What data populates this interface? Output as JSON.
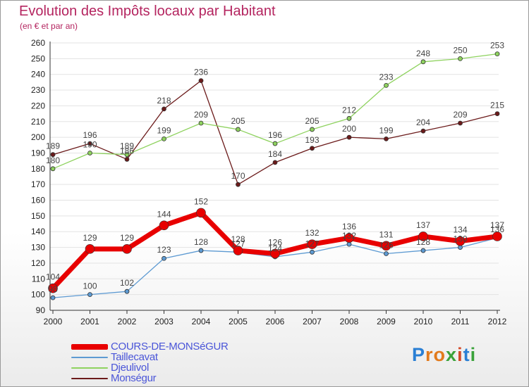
{
  "title": "Evolution des Impôts locaux par Habitant",
  "subtitle": "(en € et par an)",
  "logo": {
    "text": "Proxiti",
    "letters": [
      "P",
      "r",
      "o",
      "x",
      "i",
      "t",
      "i"
    ],
    "colors": [
      "#2a7fd4",
      "#e27a1c",
      "#e27a1c",
      "#3aa23a",
      "#d44a2a",
      "#2a7fd4",
      "#3aa23a"
    ]
  },
  "chart_data": {
    "type": "line",
    "title": "Evolution des Impôts locaux par Habitant",
    "subtitle": "(en € et par an)",
    "xlabel": "",
    "ylabel": "",
    "ylim": [
      90,
      260
    ],
    "y_ticks": [
      90,
      100,
      110,
      120,
      130,
      140,
      150,
      160,
      170,
      180,
      190,
      200,
      210,
      220,
      230,
      240,
      250,
      260
    ],
    "grid": "horizontal",
    "legend_position": "bottom-left",
    "x": [
      "2000",
      "2001",
      "2002",
      "2003",
      "2004",
      "2005",
      "2006",
      "2007",
      "2008",
      "2009",
      "2010",
      "2011",
      "2012"
    ],
    "series": [
      {
        "name": "Monségur",
        "color": "#6b1a1a",
        "line_width": 1.3,
        "marker_r": 3,
        "label_offset": -8,
        "values": [
          189,
          196,
          186,
          218,
          236,
          170,
          184,
          193,
          200,
          199,
          204,
          209,
          215
        ],
        "labels": [
          "189",
          "196",
          "186",
          "218",
          "236",
          "170",
          "184",
          "193",
          "200",
          "199",
          "204",
          "209",
          "215"
        ]
      },
      {
        "name": "Djeulivol",
        "color": "#8ed25e",
        "line_width": 1.3,
        "marker_r": 3,
        "label_offset": -8,
        "values": [
          180,
          190,
          189,
          199,
          209,
          205,
          196,
          205,
          212,
          233,
          248,
          250,
          253
        ],
        "labels": [
          "180",
          "190",
          "189",
          "199",
          "209",
          "205",
          "196",
          "205",
          "212",
          "233",
          "248",
          "250",
          "253"
        ]
      },
      {
        "name": "Taillecavat",
        "color": "#5d9ad2",
        "line_width": 1.3,
        "marker_r": 3,
        "label_offset": -8,
        "values": [
          98,
          100,
          102,
          123,
          128,
          127,
          124,
          127,
          132,
          126,
          128,
          130,
          136
        ],
        "labels": [
          "98",
          "100",
          "102",
          "123",
          "128",
          "127",
          "124",
          "127",
          "132",
          "126",
          "128",
          "130",
          "136"
        ]
      },
      {
        "name": "COURS-DE-MONSéGUR",
        "color": "#e80000",
        "line_width": 7,
        "marker_r": 6.5,
        "label_offset": -12,
        "values": [
          104,
          129,
          129,
          144,
          152,
          128,
          126,
          132,
          136,
          131,
          137,
          134,
          137
        ],
        "labels": [
          "104",
          "129",
          "129",
          "144",
          "152",
          "128",
          "126",
          "132",
          "136",
          "131",
          "137",
          "134",
          "137"
        ]
      }
    ],
    "legend": [
      {
        "name": "COURS-DE-MONSéGUR",
        "color": "#e80000"
      },
      {
        "name": "Taillecavat",
        "color": "#5d9ad2"
      },
      {
        "name": "Djeulivol",
        "color": "#8ed25e"
      },
      {
        "name": "Monségur",
        "color": "#6b1a1a"
      }
    ]
  }
}
